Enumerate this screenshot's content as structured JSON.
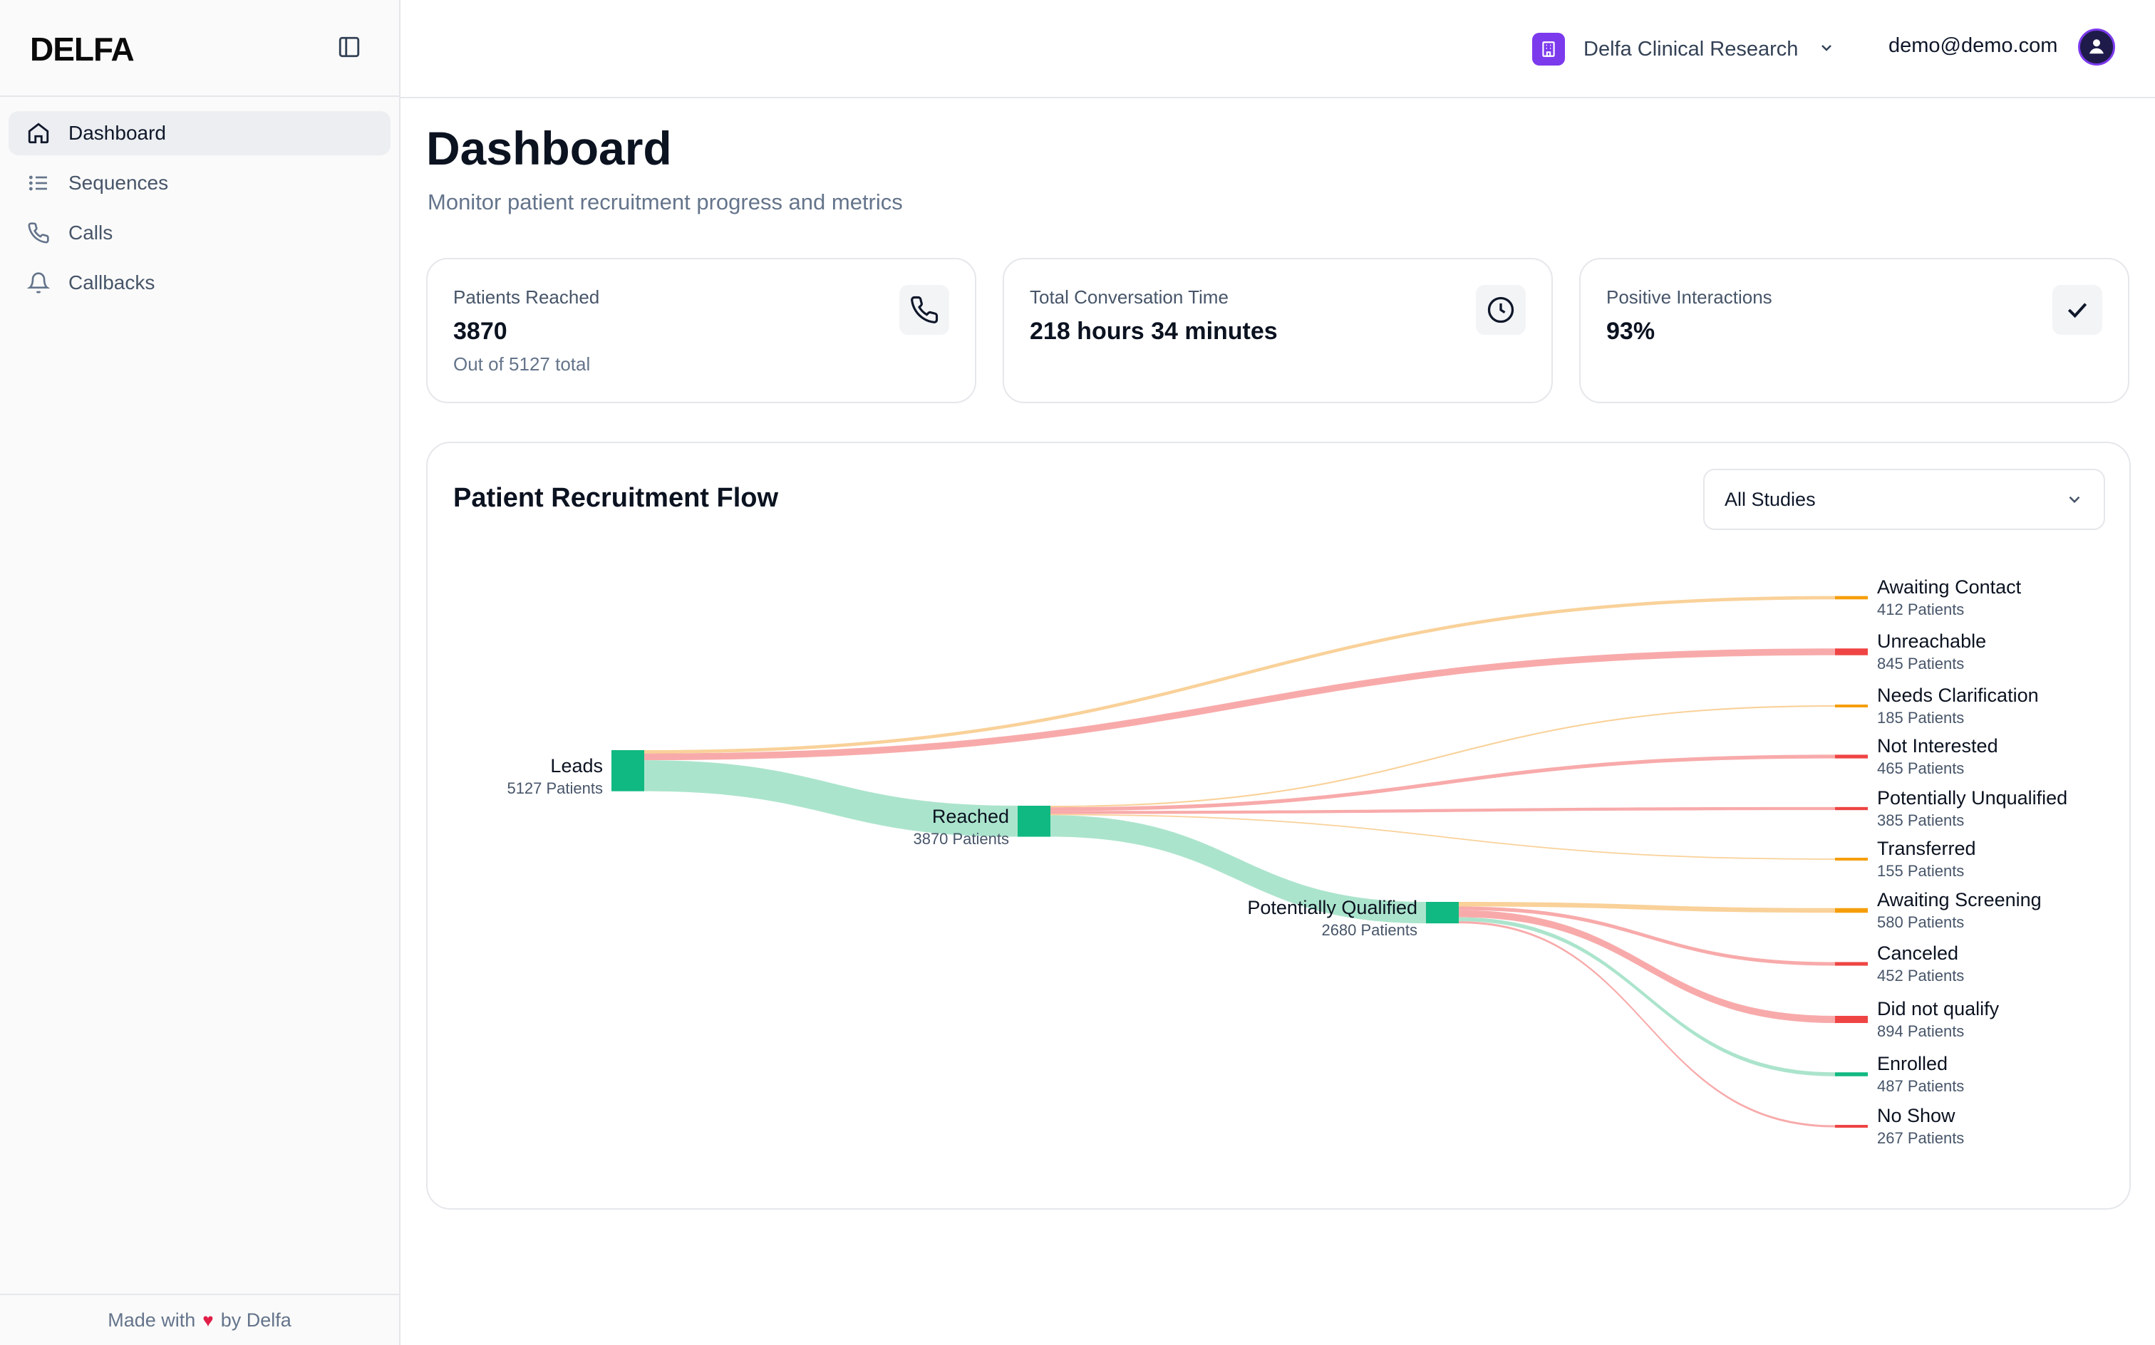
{
  "brand": {
    "logo_text": "DELFA"
  },
  "sidebar": {
    "items": [
      {
        "label": "Dashboard",
        "icon": "home-icon",
        "active": true
      },
      {
        "label": "Sequences",
        "icon": "list-icon",
        "active": false
      },
      {
        "label": "Calls",
        "icon": "phone-icon",
        "active": false
      },
      {
        "label": "Callbacks",
        "icon": "bell-icon",
        "active": false
      }
    ],
    "footer": {
      "prefix": "Made with",
      "suffix": "by Delfa"
    }
  },
  "topbar": {
    "org_name": "Delfa Clinical Research",
    "user_email": "demo@demo.com"
  },
  "page": {
    "title": "Dashboard",
    "subtitle": "Monitor patient recruitment progress and metrics"
  },
  "stats": [
    {
      "label": "Patients Reached",
      "value": "3870",
      "sub": "Out of 5127 total",
      "icon": "phone-icon"
    },
    {
      "label": "Total Conversation Time",
      "value": "218 hours 34 minutes",
      "sub": "",
      "icon": "clock-icon"
    },
    {
      "label": "Positive Interactions",
      "value": "93%",
      "sub": "",
      "icon": "check-icon"
    }
  ],
  "flow": {
    "title": "Patient Recruitment Flow",
    "study_filter": {
      "selected": "All Studies"
    }
  },
  "colors": {
    "green": "#10b981",
    "green_light": "#a7e3c9",
    "red": "#ef4444",
    "red_light": "#f8a5a5",
    "orange": "#f59e0b",
    "orange_light": "#f9cf93"
  },
  "chart_data": {
    "type": "sankey",
    "nodes": [
      {
        "id": "leads",
        "name": "Leads",
        "count": "5127 Patients",
        "value": 5127
      },
      {
        "id": "reached",
        "name": "Reached",
        "count": "3870 Patients",
        "value": 3870
      },
      {
        "id": "pq",
        "name": "Potentially Qualified",
        "count": "2680 Patients",
        "value": 2680
      },
      {
        "id": "awaiting_contact",
        "name": "Awaiting Contact",
        "count": "412 Patients",
        "value": 412
      },
      {
        "id": "unreachable",
        "name": "Unreachable",
        "count": "845 Patients",
        "value": 845
      },
      {
        "id": "needs_clarification",
        "name": "Needs Clarification",
        "count": "185 Patients",
        "value": 185
      },
      {
        "id": "not_interested",
        "name": "Not Interested",
        "count": "465 Patients",
        "value": 465
      },
      {
        "id": "potentially_unqualified",
        "name": "Potentially Unqualified",
        "count": "385 Patients",
        "value": 385
      },
      {
        "id": "transferred",
        "name": "Transferred",
        "count": "155 Patients",
        "value": 155
      },
      {
        "id": "awaiting_screening",
        "name": "Awaiting Screening",
        "count": "580 Patients",
        "value": 580
      },
      {
        "id": "canceled",
        "name": "Canceled",
        "count": "452 Patients",
        "value": 452
      },
      {
        "id": "did_not_qualify",
        "name": "Did not qualify",
        "count": "894 Patients",
        "value": 894
      },
      {
        "id": "enrolled",
        "name": "Enrolled",
        "count": "487 Patients",
        "value": 487
      },
      {
        "id": "no_show",
        "name": "No Show",
        "count": "267 Patients",
        "value": 267
      }
    ],
    "links": [
      {
        "source": "leads",
        "target": "awaiting_contact",
        "value": 412,
        "color": "orange"
      },
      {
        "source": "leads",
        "target": "unreachable",
        "value": 845,
        "color": "red"
      },
      {
        "source": "leads",
        "target": "reached",
        "value": 3870,
        "color": "green"
      },
      {
        "source": "reached",
        "target": "needs_clarification",
        "value": 185,
        "color": "orange"
      },
      {
        "source": "reached",
        "target": "not_interested",
        "value": 465,
        "color": "red"
      },
      {
        "source": "reached",
        "target": "potentially_unqualified",
        "value": 385,
        "color": "red"
      },
      {
        "source": "reached",
        "target": "transferred",
        "value": 155,
        "color": "orange"
      },
      {
        "source": "reached",
        "target": "pq",
        "value": 2680,
        "color": "green"
      },
      {
        "source": "pq",
        "target": "awaiting_screening",
        "value": 580,
        "color": "orange"
      },
      {
        "source": "pq",
        "target": "canceled",
        "value": 452,
        "color": "red"
      },
      {
        "source": "pq",
        "target": "did_not_qualify",
        "value": 894,
        "color": "red"
      },
      {
        "source": "pq",
        "target": "enrolled",
        "value": 487,
        "color": "green"
      },
      {
        "source": "pq",
        "target": "no_show",
        "value": 267,
        "color": "red"
      }
    ]
  }
}
